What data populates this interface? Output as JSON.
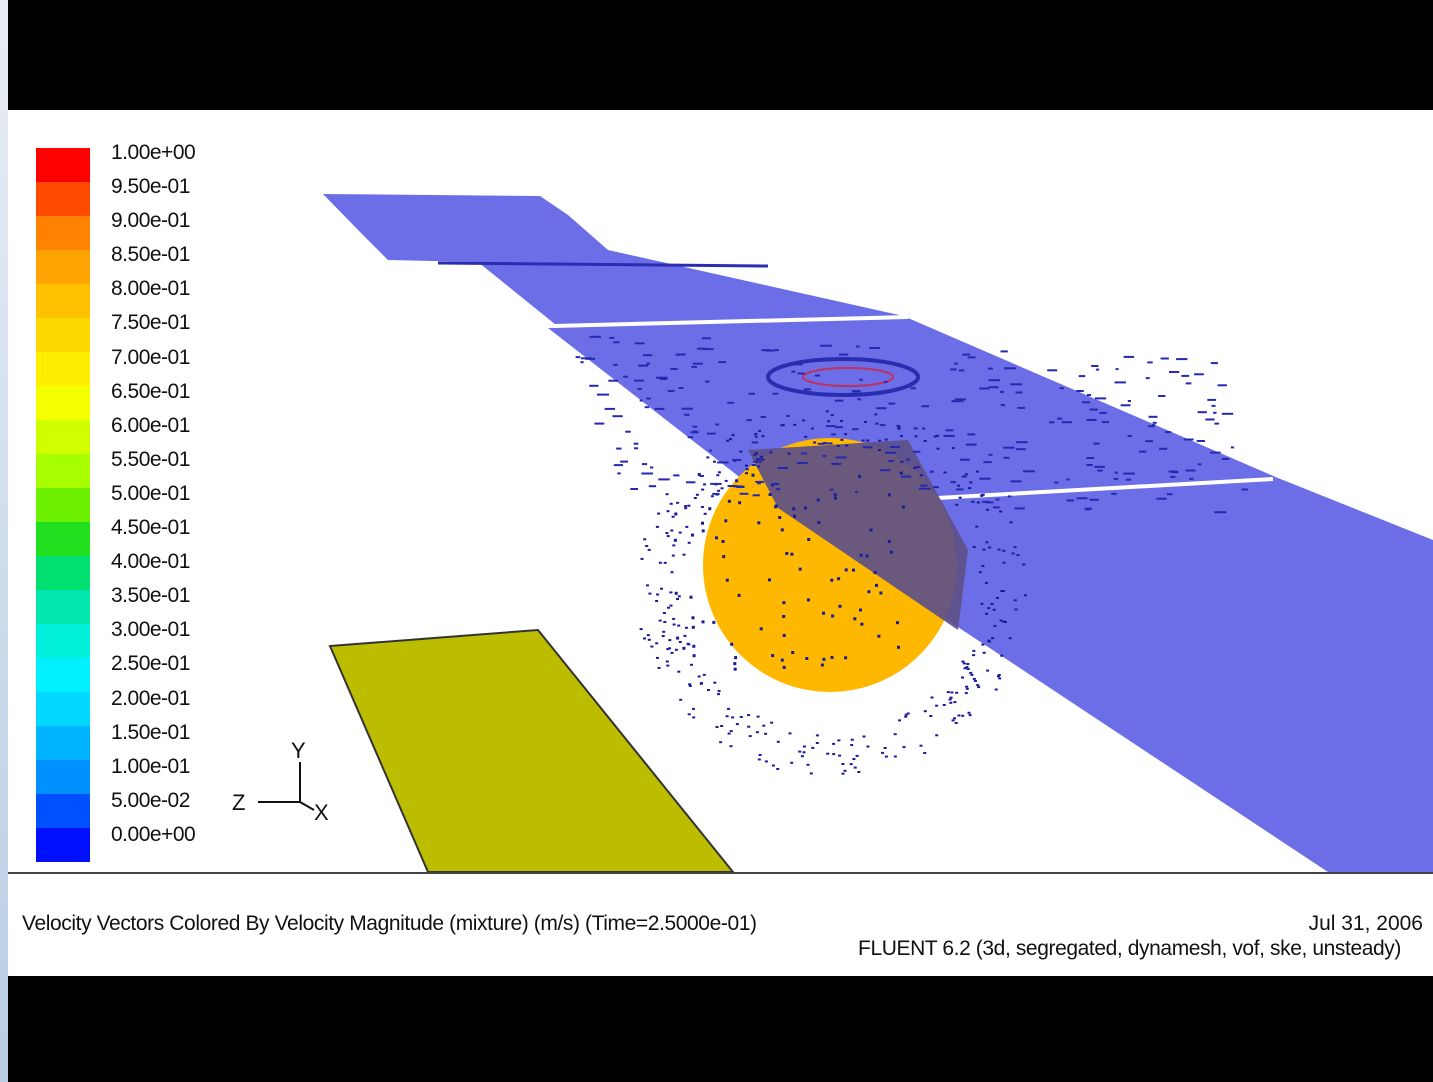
{
  "colorbar": {
    "labels": [
      "1.00e+00",
      "9.50e-01",
      "9.00e-01",
      "8.50e-01",
      "8.00e-01",
      "7.50e-01",
      "7.00e-01",
      "6.50e-01",
      "6.00e-01",
      "5.50e-01",
      "5.00e-01",
      "4.50e-01",
      "4.00e-01",
      "3.50e-01",
      "3.00e-01",
      "2.50e-01",
      "2.00e-01",
      "1.50e-01",
      "1.00e-01",
      "5.00e-02",
      "0.00e+00"
    ],
    "colors": [
      "#ff0000",
      "#ff4a00",
      "#ff8200",
      "#ffa300",
      "#ffc000",
      "#ffd800",
      "#ffee00",
      "#f4ff00",
      "#d0ff00",
      "#a8ff00",
      "#6cf000",
      "#22e020",
      "#00e070",
      "#00e8b0",
      "#00f0dc",
      "#00f0ff",
      "#00d8ff",
      "#00b4ff",
      "#0090ff",
      "#0050ff",
      "#0010ff"
    ]
  },
  "axes": {
    "y": "Y",
    "z": "Z",
    "x": "X"
  },
  "caption": {
    "title": "Velocity Vectors Colored By Velocity Magnitude (mixture)  (m/s)  (Time=2.5000e-01)",
    "date": "Jul 31, 2006",
    "solver": "FLUENT 6.2 (3d, segregated, dynamesh, vof, ske, unsteady)"
  },
  "scene": {
    "free_surface_color": "#6b6ee6",
    "sphere_color": "#ffb800",
    "wall_color": "#bdbd00"
  }
}
